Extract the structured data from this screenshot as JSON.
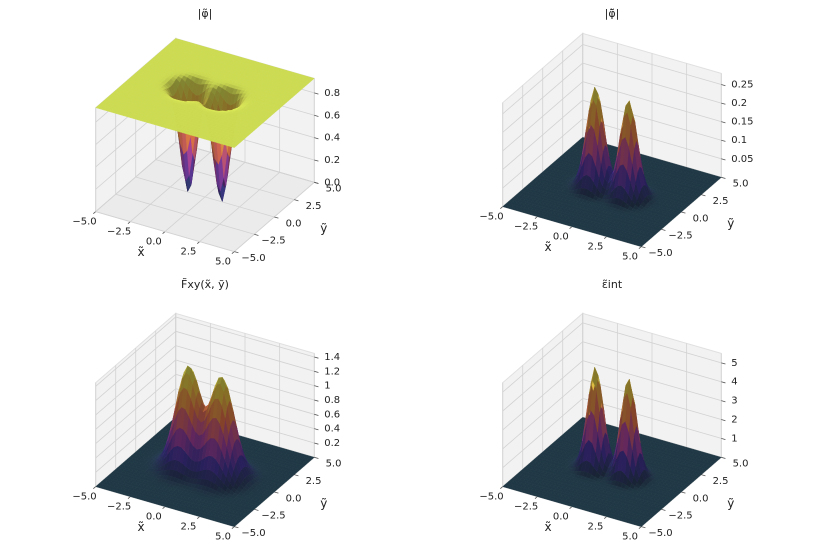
{
  "chart_data": [
    {
      "type": "surface3d",
      "title": "|φ̃|",
      "xlabel": "x̃",
      "ylabel": "ỹ",
      "xlim": [
        -5,
        5
      ],
      "ylim": [
        -5,
        5
      ],
      "zlim": [
        0,
        0.93
      ],
      "xticks": [
        {
          "value": -5,
          "label": "−5.0"
        },
        {
          "value": -2.5,
          "label": "−2.5"
        },
        {
          "value": 0,
          "label": "0.0"
        },
        {
          "value": 2.5,
          "label": "2.5"
        },
        {
          "value": 5,
          "label": "5.0"
        }
      ],
      "yticks": [
        {
          "value": -5,
          "label": "−5.0"
        },
        {
          "value": -2.5,
          "label": "−2.5"
        },
        {
          "value": 0,
          "label": "0.0"
        },
        {
          "value": 2.5,
          "label": "2.5"
        },
        {
          "value": 5,
          "label": "5.0"
        }
      ],
      "zticks": [
        {
          "value": 0,
          "label": "0.0"
        },
        0.2,
        0.4,
        0.6,
        0.8
      ],
      "z_edge": 0.93,
      "surface": {
        "x": [
          -1.2,
          1.2
        ],
        "y": [
          0,
          0
        ],
        "z": [
          0,
          0
        ]
      }
    },
    {
      "type": "surface3d",
      "title": "|φ̃̄|",
      "xlabel": "x̃",
      "ylabel": "ỹ",
      "xlim": [
        -5,
        5
      ],
      "ylim": [
        -5,
        5
      ],
      "zlim": [
        0,
        0.28
      ],
      "xticks": [
        {
          "value": -5,
          "label": "−5.0"
        },
        {
          "value": -2.5,
          "label": "−2.5"
        },
        {
          "value": 0,
          "label": "0.0"
        },
        {
          "value": 2.5,
          "label": "2.5"
        },
        {
          "value": 5,
          "label": "5.0"
        }
      ],
      "yticks": [
        {
          "value": -5,
          "label": "−5.0"
        },
        {
          "value": -2.5,
          "label": "−2.5"
        },
        {
          "value": 0,
          "label": "0.0"
        },
        {
          "value": 2.5,
          "label": "2.5"
        },
        {
          "value": 5,
          "label": "5.0"
        }
      ],
      "zticks": [
        0.05,
        0.1,
        0.15,
        0.2,
        0.25
      ],
      "z_edge": 0,
      "surface": {
        "x": [
          -1.2,
          1.2
        ],
        "y": [
          0,
          0
        ],
        "z": [
          0.27,
          0.26
        ]
      }
    },
    {
      "type": "surface3d",
      "title": "F̃xy(x̃, ỹ)",
      "xlabel": "x̃",
      "ylabel": "ỹ",
      "xlim": [
        -5,
        5
      ],
      "ylim": [
        -5,
        5
      ],
      "zlim": [
        0,
        1.45
      ],
      "xticks": [
        {
          "value": -5,
          "label": "−5.0"
        },
        {
          "value": -2.5,
          "label": "−2.5"
        },
        {
          "value": 0,
          "label": "0.0"
        },
        {
          "value": 2.5,
          "label": "2.5"
        },
        {
          "value": 5,
          "label": "5.0"
        }
      ],
      "yticks": [
        {
          "value": -5,
          "label": "−5.0"
        },
        {
          "value": -2.5,
          "label": "−2.5"
        },
        {
          "value": 0,
          "label": "0.0"
        },
        {
          "value": 2.5,
          "label": "2.5"
        },
        {
          "value": 5,
          "label": "5.0"
        }
      ],
      "zticks": [
        0.2,
        0.4,
        0.6,
        0.8,
        1,
        1.2,
        1.4
      ],
      "z_edge": 0,
      "surface": {
        "x": [
          -1.2,
          1.2
        ],
        "y": [
          0,
          0
        ],
        "z": [
          1.4,
          1.38
        ]
      }
    },
    {
      "type": "surface3d",
      "title": "ε̃int",
      "xlabel": "x̃",
      "ylabel": "ỹ",
      "xlim": [
        -5,
        5
      ],
      "ylim": [
        -5,
        5
      ],
      "zlim": [
        0,
        5.5
      ],
      "xticks": [
        {
          "value": -5,
          "label": "−5.0"
        },
        {
          "value": -2.5,
          "label": "−2.5"
        },
        {
          "value": 0,
          "label": "0.0"
        },
        {
          "value": 2.5,
          "label": "2.5"
        },
        {
          "value": 5,
          "label": "5.0"
        }
      ],
      "yticks": [
        {
          "value": -5,
          "label": "−5.0"
        },
        {
          "value": -2.5,
          "label": "−2.5"
        },
        {
          "value": 0,
          "label": "0.0"
        },
        {
          "value": 2.5,
          "label": "2.5"
        },
        {
          "value": 5,
          "label": "5.0"
        }
      ],
      "zticks": [
        1,
        2,
        3,
        4,
        5
      ],
      "z_edge": 0,
      "surface": {
        "x": [
          -1.2,
          1.2
        ],
        "y": [
          0,
          0
        ],
        "z": [
          5.3,
          5.2
        ]
      }
    }
  ]
}
